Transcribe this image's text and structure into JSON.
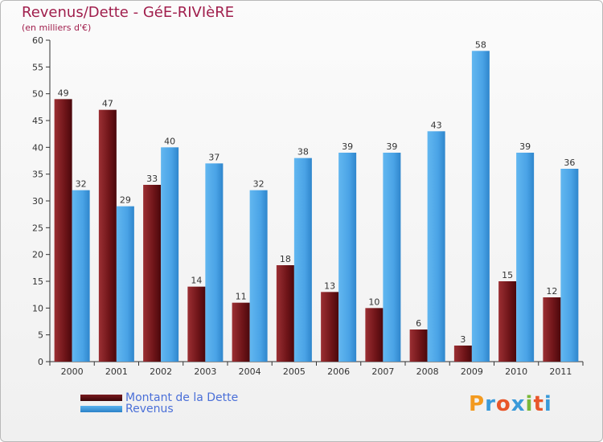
{
  "chart_data": {
    "type": "bar",
    "title": "Revenus/Dette - GéE-RIVIèRE",
    "subtitle": "(en milliers d'€)",
    "categories": [
      "2000",
      "2001",
      "2002",
      "2003",
      "2004",
      "2005",
      "2006",
      "2007",
      "2008",
      "2009",
      "2010",
      "2011"
    ],
    "series": [
      {
        "name": "Montant de la Dette",
        "values": [
          49,
          47,
          33,
          14,
          11,
          18,
          13,
          10,
          6,
          3,
          15,
          12
        ],
        "color": "#7a1a1e"
      },
      {
        "name": "Revenus",
        "values": [
          32,
          29,
          40,
          37,
          32,
          38,
          39,
          39,
          43,
          58,
          39,
          36
        ],
        "color": "#4aa3e6"
      }
    ],
    "ylim": [
      0,
      60
    ],
    "yticks": [
      0,
      5,
      10,
      15,
      20,
      25,
      30,
      35,
      40,
      45,
      50,
      55,
      60
    ],
    "xlabel": "",
    "ylabel": "",
    "grid": false,
    "legend": "bottom-left"
  },
  "logo": {
    "letters": [
      "P",
      "r",
      "o",
      "x",
      "i",
      "t",
      "i"
    ],
    "colors": [
      "#f39a1f",
      "#3a9ad9",
      "#e8562a",
      "#3a9ad9",
      "#7ab83a",
      "#e8562a",
      "#3a9ad9"
    ]
  }
}
